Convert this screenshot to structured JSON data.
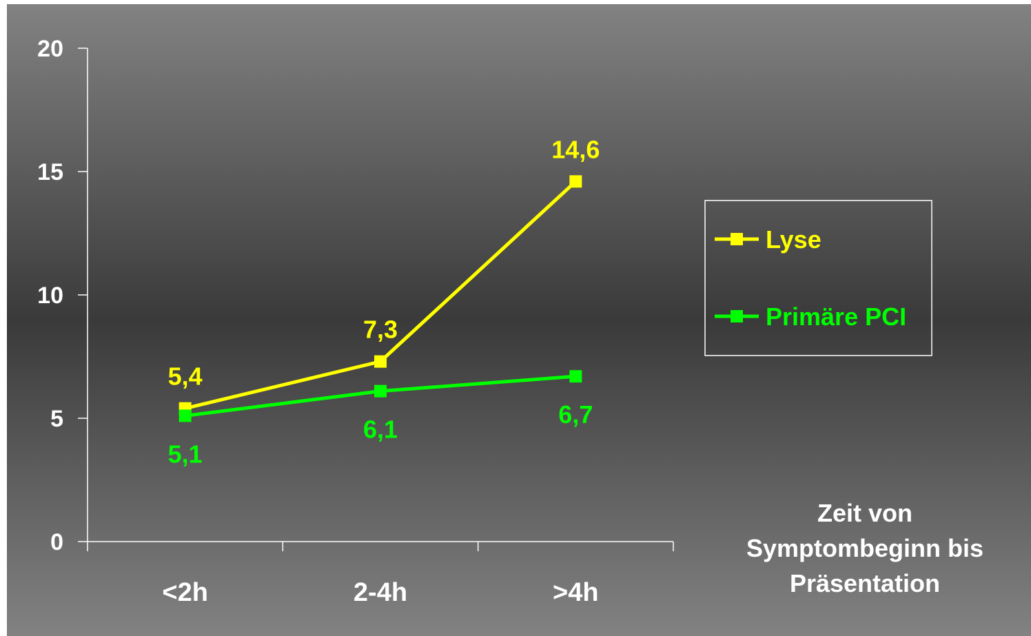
{
  "chart_data": {
    "type": "line",
    "categories": [
      "<2h",
      "2-4h",
      ">4h"
    ],
    "series": [
      {
        "name": "Lyse",
        "values": [
          5.4,
          7.3,
          14.6
        ],
        "labels": [
          "5,4",
          "7,3",
          "14,6"
        ],
        "color": "#ffff00"
      },
      {
        "name": "Primäre PCI",
        "values": [
          5.1,
          6.1,
          6.7
        ],
        "labels": [
          "5,1",
          "6,1",
          "6,7"
        ],
        "color": "#00ff00"
      }
    ],
    "title": "",
    "xlabel": [
      "Zeit von",
      "Symptombeginn bis",
      "Präsentation"
    ],
    "ylabel": "",
    "ylim": [
      0,
      20
    ],
    "yticks": [
      "0",
      "5",
      "10",
      "15",
      "20"
    ],
    "grid": false,
    "legend": "right"
  },
  "colors": {
    "background_top": "#828282",
    "background_middle": "#3a3a3a",
    "background_bottom": "#828282",
    "axis": "#ffffff",
    "text": "#ffffff"
  }
}
